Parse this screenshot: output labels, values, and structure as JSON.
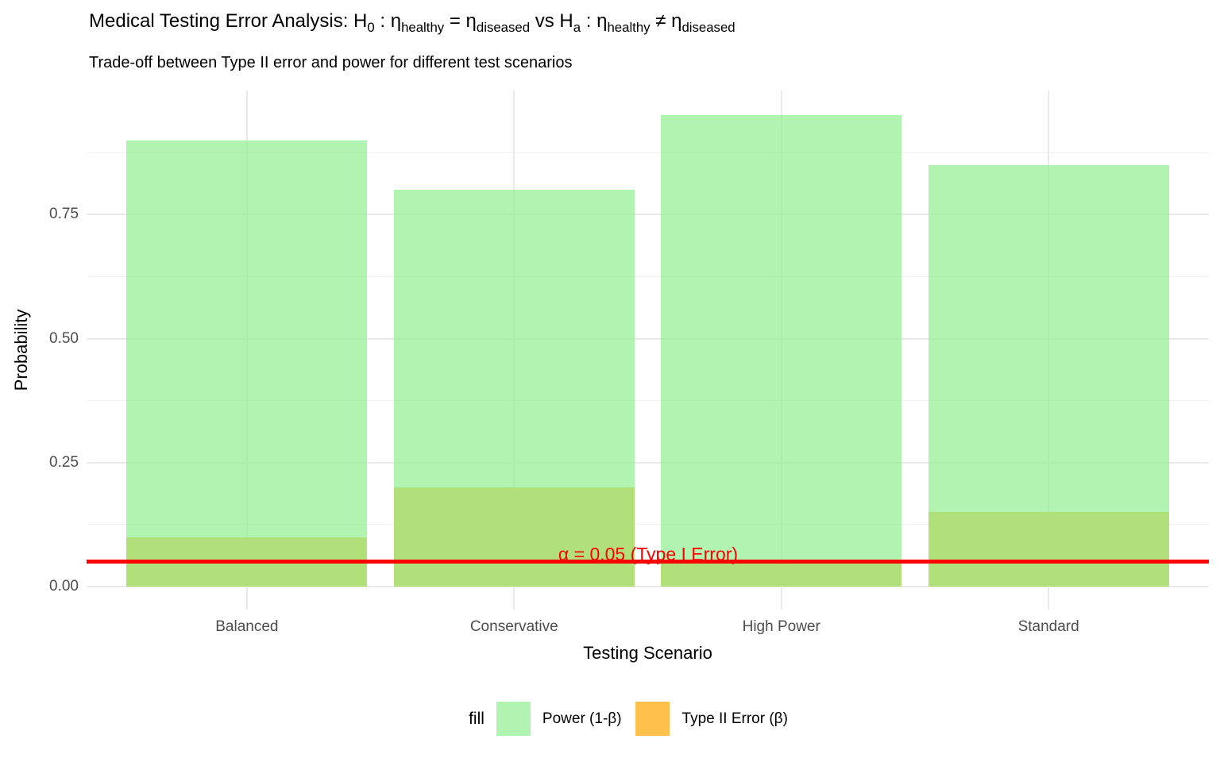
{
  "figure": {
    "background": "#ffffff"
  },
  "title": {
    "segments": [
      {
        "t": "Medical Testing Error Analysis:  H"
      },
      {
        "s": "0"
      },
      {
        "t": " : η"
      },
      {
        "s": "healthy"
      },
      {
        "t": " = η"
      },
      {
        "s": "diseased"
      },
      {
        "t": "  vs  H"
      },
      {
        "s": "a"
      },
      {
        "t": " : η"
      },
      {
        "s": "healthy"
      },
      {
        "t": " ≠ η"
      },
      {
        "s": "diseased"
      }
    ]
  },
  "subtitle": "Trade-off between Type II error and power for different test scenarios",
  "axes": {
    "x": {
      "title": "Testing Scenario",
      "tick_labels": [
        "Balanced",
        "Conservative",
        "High Power",
        "Standard"
      ]
    },
    "y": {
      "title": "Probability",
      "tick_labels": [
        "0.00",
        "0.25",
        "0.50",
        "0.75"
      ]
    }
  },
  "legend": {
    "title": "fill",
    "items": [
      {
        "label": "Power (1-β)",
        "base_color": "#90EE90",
        "alpha": 0.7
      },
      {
        "label": "Type II Error (β)",
        "base_color": "#FFA500",
        "alpha": 0.7
      }
    ]
  },
  "annotation": {
    "text": "α = 0.05 (Type I Error)",
    "color": "#FF0000"
  },
  "colors": {
    "grid_major": "#E9E9E9",
    "grid_minor": "#F2F2F2",
    "tick_label": "#4D4D4D",
    "reference_line": "#FF0000",
    "power_fill_on_white": "#B1F3B1",
    "type2_fill_on_white": "#FFC04D",
    "overlap_fill": "#B1E07C"
  },
  "chart_data": {
    "type": "bar",
    "subtype": "overlaid-transparent-bars (position identity, alpha 0.7)",
    "title": "Medical Testing Error Analysis: H0 : η_healthy = η_diseased vs Ha : η_healthy ≠ η_diseased",
    "subtitle": "Trade-off between Type II error and power for different test scenarios",
    "categories": [
      "Balanced",
      "Conservative",
      "High Power",
      "Standard"
    ],
    "series": [
      {
        "name": "Power (1-β)",
        "values": [
          0.9,
          0.8,
          0.95,
          0.85
        ],
        "base_color": "#90EE90",
        "alpha": 0.7
      },
      {
        "name": "Type II Error (β)",
        "values": [
          0.1,
          0.2,
          0.05,
          0.15
        ],
        "base_color": "#FFA500",
        "alpha": 0.7
      }
    ],
    "xlabel": "Testing Scenario",
    "ylabel": "Probability",
    "ylim": [
      0,
      1.0
    ],
    "yticks": [
      0,
      0.25,
      0.5,
      0.75
    ],
    "yticks_minor": [
      0.125,
      0.375,
      0.625,
      0.875
    ],
    "ytick_labels": [
      "0.00",
      "0.25",
      "0.50",
      "0.75"
    ],
    "reference_line": {
      "y": 0.05,
      "label": "α = 0.05 (Type I Error)",
      "color": "#FF0000"
    },
    "grid": true,
    "legend_position": "bottom",
    "legend_title": "fill",
    "bar_width_fraction": 0.9
  }
}
